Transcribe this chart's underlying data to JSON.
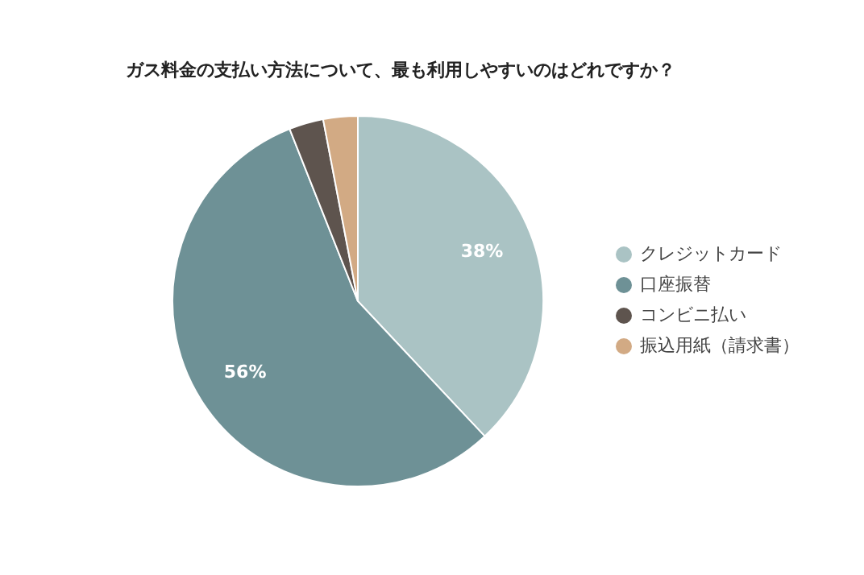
{
  "chart_data": {
    "type": "pie",
    "title": "ガス料金の支払い方法について、最も利用しやすいのはどれですか？",
    "categories": [
      "クレジットカード",
      "口座振替",
      "コンビニ払い",
      "振込用紙（請求書）"
    ],
    "values": [
      38,
      56,
      3,
      3
    ],
    "colors": [
      "#aac3c4",
      "#6e9196",
      "#5e544e",
      "#d2aa84"
    ],
    "value_labels": [
      "38%",
      "56%",
      null,
      null
    ],
    "legend": "right"
  }
}
